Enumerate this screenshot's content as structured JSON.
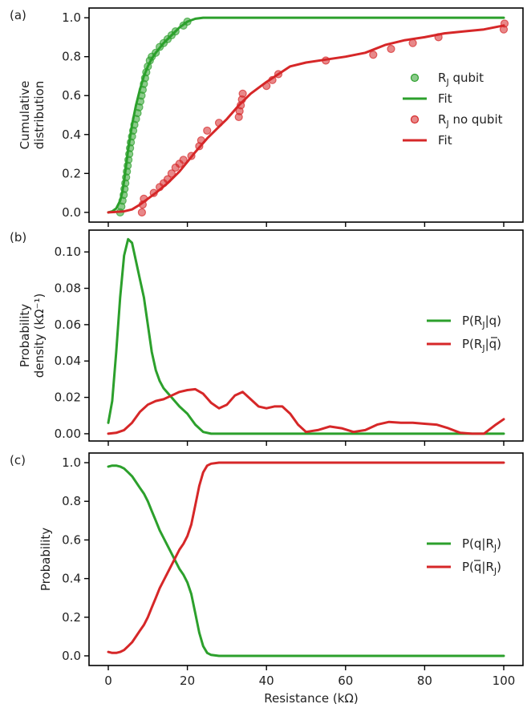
{
  "colors": {
    "green": "#2ca02c",
    "red": "#d62728",
    "axis": "#000000"
  },
  "xlabel": "Resistance (kΩ)",
  "chart_data": [
    {
      "id": "a",
      "panel_label": "(a)",
      "type": "line",
      "ylabel_lines": [
        "Cumulative",
        "distribution"
      ],
      "xlim": [
        0,
        100
      ],
      "ylim": [
        -0.05,
        1.05
      ],
      "xticks": [
        0,
        20,
        40,
        60,
        80,
        100
      ],
      "yticks": [
        0.0,
        0.2,
        0.4,
        0.6,
        0.8,
        1.0
      ],
      "ytick_labels": [
        "0.0",
        "0.2",
        "0.4",
        "0.6",
        "0.8",
        "1.0"
      ],
      "legend_position": "right",
      "legend": [
        {
          "label_main": "R",
          "label_sub": "J",
          "label_rest": " qubit",
          "marker": "circle",
          "color": "green"
        },
        {
          "label_main": "Fit",
          "label_sub": "",
          "label_rest": "",
          "marker": "line",
          "color": "green"
        },
        {
          "label_main": "R",
          "label_sub": "J",
          "label_rest": " no qubit",
          "marker": "circle",
          "color": "red"
        },
        {
          "label_main": "Fit",
          "label_sub": "",
          "label_rest": "",
          "marker": "line",
          "color": "red"
        }
      ],
      "series": [
        {
          "kind": "line",
          "color": "green",
          "x": [
            0,
            1,
            2,
            3,
            3.5,
            4,
            4.5,
            5,
            6,
            7,
            8,
            9,
            10,
            11,
            12,
            14,
            16,
            18,
            20,
            22,
            24,
            26,
            30,
            40,
            60,
            80,
            100
          ],
          "y": [
            0,
            0.005,
            0.02,
            0.06,
            0.1,
            0.16,
            0.24,
            0.32,
            0.45,
            0.55,
            0.63,
            0.7,
            0.75,
            0.79,
            0.82,
            0.87,
            0.91,
            0.95,
            0.98,
            0.995,
            1.0,
            1.0,
            1.0,
            1.0,
            1.0,
            1.0,
            1.0
          ]
        },
        {
          "kind": "scatter",
          "color": "green",
          "x": [
            3,
            3.3,
            3.6,
            3.9,
            4.1,
            4.3,
            4.5,
            4.7,
            4.9,
            5.1,
            5.3,
            5.5,
            5.7,
            6.0,
            6.3,
            6.6,
            7.0,
            7.4,
            7.8,
            8.1,
            8.4,
            8.7,
            9.0,
            9.3,
            9.6,
            10.0,
            10.5,
            11.0,
            12.0,
            13.0,
            14.0,
            15.0,
            16.0,
            17.0,
            19.0,
            20.0
          ],
          "y": [
            0.0,
            0.03,
            0.06,
            0.09,
            0.12,
            0.15,
            0.18,
            0.21,
            0.24,
            0.27,
            0.3,
            0.33,
            0.36,
            0.39,
            0.42,
            0.45,
            0.48,
            0.51,
            0.54,
            0.57,
            0.6,
            0.63,
            0.66,
            0.69,
            0.72,
            0.75,
            0.78,
            0.8,
            0.82,
            0.85,
            0.87,
            0.89,
            0.91,
            0.93,
            0.96,
            0.98
          ]
        },
        {
          "kind": "line",
          "color": "red",
          "x": [
            0,
            4,
            6,
            8,
            10,
            12,
            15,
            18,
            20,
            22,
            25,
            28,
            30,
            33,
            36,
            40,
            43,
            46,
            50,
            55,
            60,
            65,
            70,
            75,
            80,
            85,
            90,
            95,
            100
          ],
          "y": [
            0,
            0.005,
            0.015,
            0.04,
            0.07,
            0.1,
            0.15,
            0.21,
            0.26,
            0.31,
            0.38,
            0.44,
            0.48,
            0.55,
            0.61,
            0.67,
            0.71,
            0.75,
            0.77,
            0.785,
            0.8,
            0.82,
            0.86,
            0.885,
            0.9,
            0.92,
            0.93,
            0.94,
            0.96
          ]
        },
        {
          "kind": "scatter",
          "color": "red",
          "x": [
            8.5,
            8.7,
            9,
            11.5,
            13,
            14,
            15,
            16,
            17,
            18,
            19,
            21,
            23,
            23.5,
            25,
            28,
            33,
            33.2,
            33.5,
            33.8,
            34,
            40,
            41.5,
            43,
            55,
            67,
            71.5,
            77,
            83.5,
            100,
            100.2
          ],
          "y": [
            0.0,
            0.04,
            0.07,
            0.1,
            0.13,
            0.15,
            0.17,
            0.2,
            0.23,
            0.25,
            0.27,
            0.29,
            0.34,
            0.37,
            0.42,
            0.46,
            0.49,
            0.52,
            0.55,
            0.58,
            0.61,
            0.65,
            0.68,
            0.71,
            0.78,
            0.81,
            0.84,
            0.87,
            0.9,
            0.94,
            0.97
          ]
        }
      ]
    },
    {
      "id": "b",
      "panel_label": "(b)",
      "type": "line",
      "ylabel_lines": [
        "Probability",
        "density (kΩ⁻¹)"
      ],
      "xlim": [
        0,
        100
      ],
      "ylim": [
        -0.004,
        0.112
      ],
      "xticks": [
        0,
        20,
        40,
        60,
        80,
        100
      ],
      "yticks": [
        0.0,
        0.02,
        0.04,
        0.06,
        0.08,
        0.1
      ],
      "ytick_labels": [
        "0.00",
        "0.02",
        "0.04",
        "0.06",
        "0.08",
        "0.10"
      ],
      "legend_position": "right",
      "legend": [
        {
          "label_main": "P(R",
          "label_sub": "J",
          "label_rest": "|q)",
          "overline": false,
          "marker": "line",
          "color": "green"
        },
        {
          "label_main": "P(R",
          "label_sub": "J",
          "label_rest": "|q)",
          "overline": true,
          "marker": "line",
          "color": "red"
        }
      ],
      "series": [
        {
          "kind": "line",
          "color": "green",
          "x": [
            0,
            1,
            2,
            3,
            4,
            5,
            6,
            7,
            8,
            9,
            10,
            11,
            12,
            13,
            14,
            16,
            18,
            20,
            22,
            24,
            26,
            30,
            40,
            60,
            80,
            100
          ],
          "y": [
            0.006,
            0.018,
            0.045,
            0.075,
            0.098,
            0.107,
            0.105,
            0.095,
            0.085,
            0.075,
            0.06,
            0.045,
            0.035,
            0.029,
            0.025,
            0.02,
            0.015,
            0.011,
            0.005,
            0.001,
            0.0,
            0.0,
            0.0,
            0.0,
            0.0,
            0.0
          ]
        },
        {
          "kind": "line",
          "color": "red",
          "x": [
            0,
            2,
            4,
            6,
            8,
            10,
            12,
            14,
            16,
            18,
            20,
            22,
            24,
            26,
            28,
            30,
            32,
            34,
            36,
            38,
            40,
            42,
            44,
            46,
            48,
            50,
            53,
            56,
            59,
            62,
            65,
            68,
            71,
            74,
            77,
            80,
            83,
            86,
            89,
            92,
            95,
            98,
            100
          ],
          "y": [
            0.0,
            0.0005,
            0.002,
            0.006,
            0.012,
            0.016,
            0.018,
            0.019,
            0.021,
            0.023,
            0.024,
            0.0245,
            0.022,
            0.017,
            0.014,
            0.016,
            0.021,
            0.023,
            0.019,
            0.015,
            0.014,
            0.015,
            0.015,
            0.011,
            0.005,
            0.001,
            0.002,
            0.004,
            0.003,
            0.001,
            0.002,
            0.005,
            0.0065,
            0.006,
            0.006,
            0.0055,
            0.005,
            0.003,
            0.0005,
            0.0,
            0.0,
            0.005,
            0.008
          ]
        }
      ]
    },
    {
      "id": "c",
      "panel_label": "(c)",
      "type": "line",
      "ylabel_lines": [
        "Probability"
      ],
      "xlim": [
        0,
        100
      ],
      "ylim": [
        -0.05,
        1.05
      ],
      "xticks": [
        0,
        20,
        40,
        60,
        80,
        100
      ],
      "xtick_labels": [
        "0",
        "20",
        "40",
        "60",
        "80",
        "100"
      ],
      "yticks": [
        0.0,
        0.2,
        0.4,
        0.6,
        0.8,
        1.0
      ],
      "ytick_labels": [
        "0.0",
        "0.2",
        "0.4",
        "0.6",
        "0.8",
        "1.0"
      ],
      "legend_position": "right",
      "legend": [
        {
          "label_main": "P(q|R",
          "label_sub": "J",
          "label_rest": ")",
          "overline": false,
          "marker": "line",
          "color": "green"
        },
        {
          "label_main": "P(q|R",
          "label_sub": "J",
          "label_rest": ")",
          "overline": true,
          "marker": "line",
          "color": "red"
        }
      ],
      "series": [
        {
          "kind": "line",
          "color": "green",
          "x": [
            0,
            1,
            2,
            3,
            4,
            5,
            6,
            7,
            8,
            9,
            10,
            11,
            12,
            13,
            14,
            15,
            16,
            17,
            18,
            19,
            20,
            21,
            22,
            23,
            24,
            25,
            26,
            28,
            30,
            40,
            60,
            80,
            100
          ],
          "y": [
            0.98,
            0.985,
            0.985,
            0.98,
            0.97,
            0.95,
            0.93,
            0.9,
            0.87,
            0.84,
            0.8,
            0.75,
            0.7,
            0.65,
            0.61,
            0.57,
            0.53,
            0.49,
            0.45,
            0.42,
            0.38,
            0.32,
            0.22,
            0.12,
            0.05,
            0.015,
            0.005,
            0.0,
            0.0,
            0.0,
            0.0,
            0.0,
            0.0
          ]
        },
        {
          "kind": "line",
          "color": "red",
          "x": [
            0,
            1,
            2,
            3,
            4,
            5,
            6,
            7,
            8,
            9,
            10,
            11,
            12,
            13,
            14,
            15,
            16,
            17,
            18,
            19,
            20,
            21,
            22,
            23,
            24,
            25,
            26,
            28,
            30,
            40,
            60,
            80,
            100
          ],
          "y": [
            0.02,
            0.015,
            0.015,
            0.02,
            0.03,
            0.05,
            0.07,
            0.1,
            0.13,
            0.16,
            0.2,
            0.25,
            0.3,
            0.35,
            0.39,
            0.43,
            0.47,
            0.51,
            0.55,
            0.58,
            0.62,
            0.68,
            0.78,
            0.88,
            0.95,
            0.985,
            0.995,
            1.0,
            1.0,
            1.0,
            1.0,
            1.0,
            1.0
          ]
        }
      ]
    }
  ]
}
